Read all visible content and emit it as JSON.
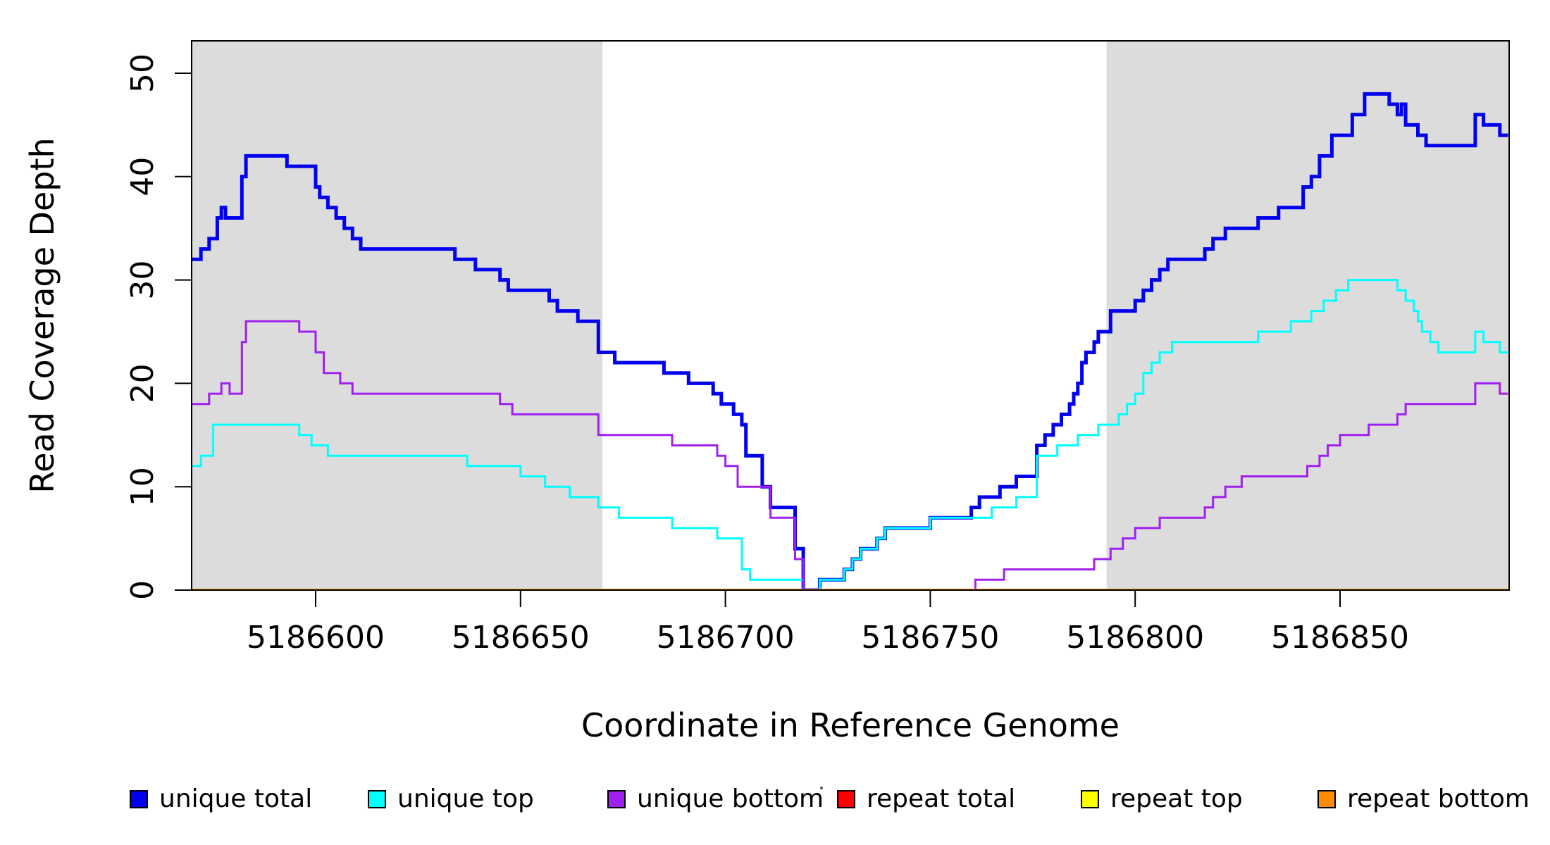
{
  "figure": {
    "x_title": "Coordinate in Reference Genome",
    "y_title": "Read Coverage Depth"
  },
  "legend": [
    {
      "label": "unique total",
      "color": "#0000EE"
    },
    {
      "label": "unique top",
      "color": "#00FFFF"
    },
    {
      "label": "unique bottom",
      "color": "#A020F0"
    },
    {
      "label": "repeat total",
      "color": "#FF0000"
    },
    {
      "label": "repeat top",
      "color": "#FFFF00"
    },
    {
      "label": "repeat bottom",
      "color": "#FF8C00"
    }
  ],
  "chart_data": {
    "type": "line",
    "step": true,
    "title": "",
    "xlabel": "Coordinate in Reference Genome",
    "ylabel": "Read Coverage Depth",
    "xlim": [
      5186569,
      5186891
    ],
    "ylim": [
      0,
      53
    ],
    "x_ticks": [
      5186600,
      5186650,
      5186700,
      5186750,
      5186800,
      5186850
    ],
    "y_ticks": [
      0,
      10,
      20,
      30,
      40,
      50
    ],
    "grid": false,
    "legend_position": "bottom",
    "shade_color": "#DCDCDC",
    "shaded_regions": [
      {
        "x0": 5186569,
        "x1": 5186670
      },
      {
        "x0": 5186793,
        "x1": 5186891
      }
    ],
    "series": [
      {
        "name": "unique total",
        "color": "#0000EE",
        "width": 5,
        "points": [
          [
            5186569,
            32
          ],
          [
            5186572,
            33
          ],
          [
            5186574,
            34
          ],
          [
            5186576,
            36
          ],
          [
            5186577,
            37
          ],
          [
            5186578,
            36
          ],
          [
            5186582,
            40
          ],
          [
            5186583,
            42
          ],
          [
            5186593,
            41
          ],
          [
            5186600,
            39
          ],
          [
            5186601,
            38
          ],
          [
            5186603,
            37
          ],
          [
            5186605,
            36
          ],
          [
            5186607,
            35
          ],
          [
            5186609,
            34
          ],
          [
            5186611,
            33
          ],
          [
            5186634,
            32
          ],
          [
            5186639,
            31
          ],
          [
            5186645,
            30
          ],
          [
            5186647,
            29
          ],
          [
            5186657,
            28
          ],
          [
            5186659,
            27
          ],
          [
            5186664,
            26
          ],
          [
            5186669,
            23
          ],
          [
            5186673,
            22
          ],
          [
            5186685,
            21
          ],
          [
            5186691,
            20
          ],
          [
            5186697,
            19
          ],
          [
            5186699,
            18
          ],
          [
            5186702,
            17
          ],
          [
            5186704,
            16
          ],
          [
            5186705,
            13
          ],
          [
            5186709,
            10
          ],
          [
            5186711,
            8
          ],
          [
            5186717,
            4
          ],
          [
            5186719,
            0
          ],
          [
            5186723,
            1
          ],
          [
            5186729,
            2
          ],
          [
            5186731,
            3
          ],
          [
            5186733,
            4
          ],
          [
            5186737,
            5
          ],
          [
            5186739,
            6
          ],
          [
            5186750,
            7
          ],
          [
            5186760,
            8
          ],
          [
            5186762,
            9
          ],
          [
            5186767,
            10
          ],
          [
            5186771,
            11
          ],
          [
            5186776,
            14
          ],
          [
            5186778,
            15
          ],
          [
            5186780,
            16
          ],
          [
            5186782,
            17
          ],
          [
            5186784,
            18
          ],
          [
            5186785,
            19
          ],
          [
            5186786,
            20
          ],
          [
            5186787,
            22
          ],
          [
            5186788,
            23
          ],
          [
            5186790,
            24
          ],
          [
            5186791,
            25
          ],
          [
            5186794,
            27
          ],
          [
            5186800,
            28
          ],
          [
            5186802,
            29
          ],
          [
            5186804,
            30
          ],
          [
            5186806,
            31
          ],
          [
            5186808,
            32
          ],
          [
            5186817,
            33
          ],
          [
            5186819,
            34
          ],
          [
            5186822,
            35
          ],
          [
            5186830,
            36
          ],
          [
            5186835,
            37
          ],
          [
            5186841,
            39
          ],
          [
            5186843,
            40
          ],
          [
            5186845,
            42
          ],
          [
            5186848,
            44
          ],
          [
            5186853,
            46
          ],
          [
            5186856,
            48
          ],
          [
            5186862,
            47
          ],
          [
            5186864,
            46
          ],
          [
            5186865,
            47
          ],
          [
            5186866,
            45
          ],
          [
            5186869,
            44
          ],
          [
            5186871,
            43
          ],
          [
            5186883,
            46
          ],
          [
            5186885,
            45
          ],
          [
            5186889,
            44
          ]
        ]
      },
      {
        "name": "unique top",
        "color": "#00FFFF",
        "width": 3,
        "points": [
          [
            5186569,
            12
          ],
          [
            5186572,
            13
          ],
          [
            5186575,
            16
          ],
          [
            5186596,
            15
          ],
          [
            5186599,
            14
          ],
          [
            5186603,
            13
          ],
          [
            5186637,
            12
          ],
          [
            5186650,
            11
          ],
          [
            5186656,
            10
          ],
          [
            5186662,
            9
          ],
          [
            5186669,
            8
          ],
          [
            5186674,
            7
          ],
          [
            5186687,
            6
          ],
          [
            5186698,
            5
          ],
          [
            5186704,
            2
          ],
          [
            5186706,
            1
          ],
          [
            5186719,
            0
          ],
          [
            5186723,
            1
          ],
          [
            5186729,
            2
          ],
          [
            5186731,
            3
          ],
          [
            5186733,
            4
          ],
          [
            5186737,
            5
          ],
          [
            5186739,
            6
          ],
          [
            5186750,
            7
          ],
          [
            5186765,
            8
          ],
          [
            5186771,
            9
          ],
          [
            5186776,
            13
          ],
          [
            5186781,
            14
          ],
          [
            5186786,
            15
          ],
          [
            5186791,
            16
          ],
          [
            5186796,
            17
          ],
          [
            5186798,
            18
          ],
          [
            5186800,
            19
          ],
          [
            5186802,
            21
          ],
          [
            5186804,
            22
          ],
          [
            5186806,
            23
          ],
          [
            5186809,
            24
          ],
          [
            5186830,
            25
          ],
          [
            5186838,
            26
          ],
          [
            5186843,
            27
          ],
          [
            5186846,
            28
          ],
          [
            5186849,
            29
          ],
          [
            5186852,
            30
          ],
          [
            5186864,
            29
          ],
          [
            5186866,
            28
          ],
          [
            5186868,
            27
          ],
          [
            5186869,
            26
          ],
          [
            5186870,
            25
          ],
          [
            5186872,
            24
          ],
          [
            5186874,
            23
          ],
          [
            5186883,
            25
          ],
          [
            5186885,
            24
          ],
          [
            5186889,
            23
          ]
        ]
      },
      {
        "name": "unique bottom",
        "color": "#A020F0",
        "width": 3,
        "points": [
          [
            5186569,
            18
          ],
          [
            5186574,
            19
          ],
          [
            5186577,
            20
          ],
          [
            5186579,
            19
          ],
          [
            5186582,
            24
          ],
          [
            5186583,
            26
          ],
          [
            5186596,
            25
          ],
          [
            5186600,
            23
          ],
          [
            5186602,
            21
          ],
          [
            5186606,
            20
          ],
          [
            5186609,
            19
          ],
          [
            5186645,
            18
          ],
          [
            5186648,
            17
          ],
          [
            5186669,
            15
          ],
          [
            5186687,
            14
          ],
          [
            5186698,
            13
          ],
          [
            5186700,
            12
          ],
          [
            5186703,
            10
          ],
          [
            5186711,
            7
          ],
          [
            5186717,
            3
          ],
          [
            5186719,
            0
          ],
          [
            5186761,
            1
          ],
          [
            5186768,
            2
          ],
          [
            5186790,
            3
          ],
          [
            5186794,
            4
          ],
          [
            5186797,
            5
          ],
          [
            5186800,
            6
          ],
          [
            5186806,
            7
          ],
          [
            5186817,
            8
          ],
          [
            5186819,
            9
          ],
          [
            5186822,
            10
          ],
          [
            5186826,
            11
          ],
          [
            5186842,
            12
          ],
          [
            5186845,
            13
          ],
          [
            5186847,
            14
          ],
          [
            5186850,
            15
          ],
          [
            5186857,
            16
          ],
          [
            5186864,
            17
          ],
          [
            5186866,
            18
          ],
          [
            5186883,
            20
          ],
          [
            5186889,
            19
          ]
        ]
      },
      {
        "name": "repeat total",
        "color": "#FF0000",
        "width": 3,
        "points": [
          [
            5186569,
            0
          ]
        ]
      },
      {
        "name": "repeat top",
        "color": "#FFFF00",
        "width": 3,
        "points": [
          [
            5186569,
            0
          ]
        ]
      },
      {
        "name": "repeat bottom",
        "color": "#FF8C00",
        "width": 4,
        "points": [
          [
            5186569,
            0
          ]
        ]
      }
    ]
  }
}
